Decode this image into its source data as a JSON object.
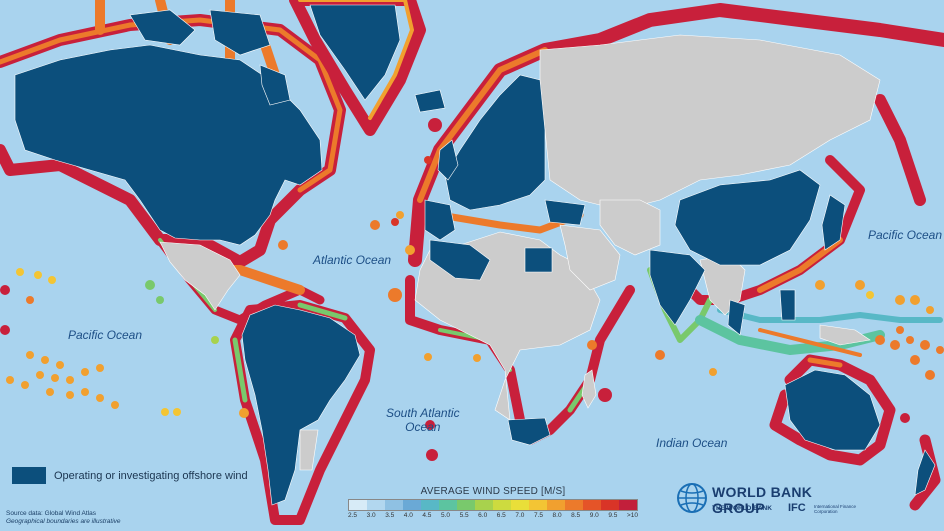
{
  "ocean_labels": {
    "atlantic": "Atlantic Ocean",
    "pacific_west": "Pacific Ocean",
    "pacific_east": "Pacific Ocean",
    "south_atlantic": "South Atlantic\nOcean",
    "indian": "Indian Ocean"
  },
  "legend": {
    "label": "Operating or investigating offshore wind",
    "color": "#0c4f7c"
  },
  "source": {
    "line1": "Source data: Global Wind Atlas",
    "line2": "Geographical boundaries are illustrative"
  },
  "wind_scale": {
    "title": "AVERAGE WIND SPEED [M/S]",
    "ticks": [
      "2.5",
      "3.0",
      "3.5",
      "4.0",
      "4.5",
      "5.0",
      "5.5",
      "6.0",
      "6.5",
      "7.0",
      "7.5",
      "8.0",
      "8.5",
      "9.0",
      "9.5",
      ">10"
    ],
    "colors": [
      "#d7ebf7",
      "#b2d7ef",
      "#8fc1e3",
      "#6aa9d6",
      "#58b8c6",
      "#5cc4a0",
      "#79c96c",
      "#a8d24d",
      "#cddb3f",
      "#e9df39",
      "#f3c534",
      "#f1a02f",
      "#ec7a2b",
      "#e55428",
      "#d93427",
      "#c21f3b"
    ]
  },
  "logo": {
    "title": "WORLD BANK GROUP",
    "sub1": "THE WORLD BANK",
    "ifc": "IFC",
    "ifc_sub": "International Finance Corporation"
  },
  "colors": {
    "ocean": "#a9d3ee",
    "land_grey": "#cccccc",
    "land_blue": "#0c4f7c",
    "coast_high": "#c8203b",
    "coast_mid": "#ec7a2b",
    "coast_low": "#79c96c"
  }
}
